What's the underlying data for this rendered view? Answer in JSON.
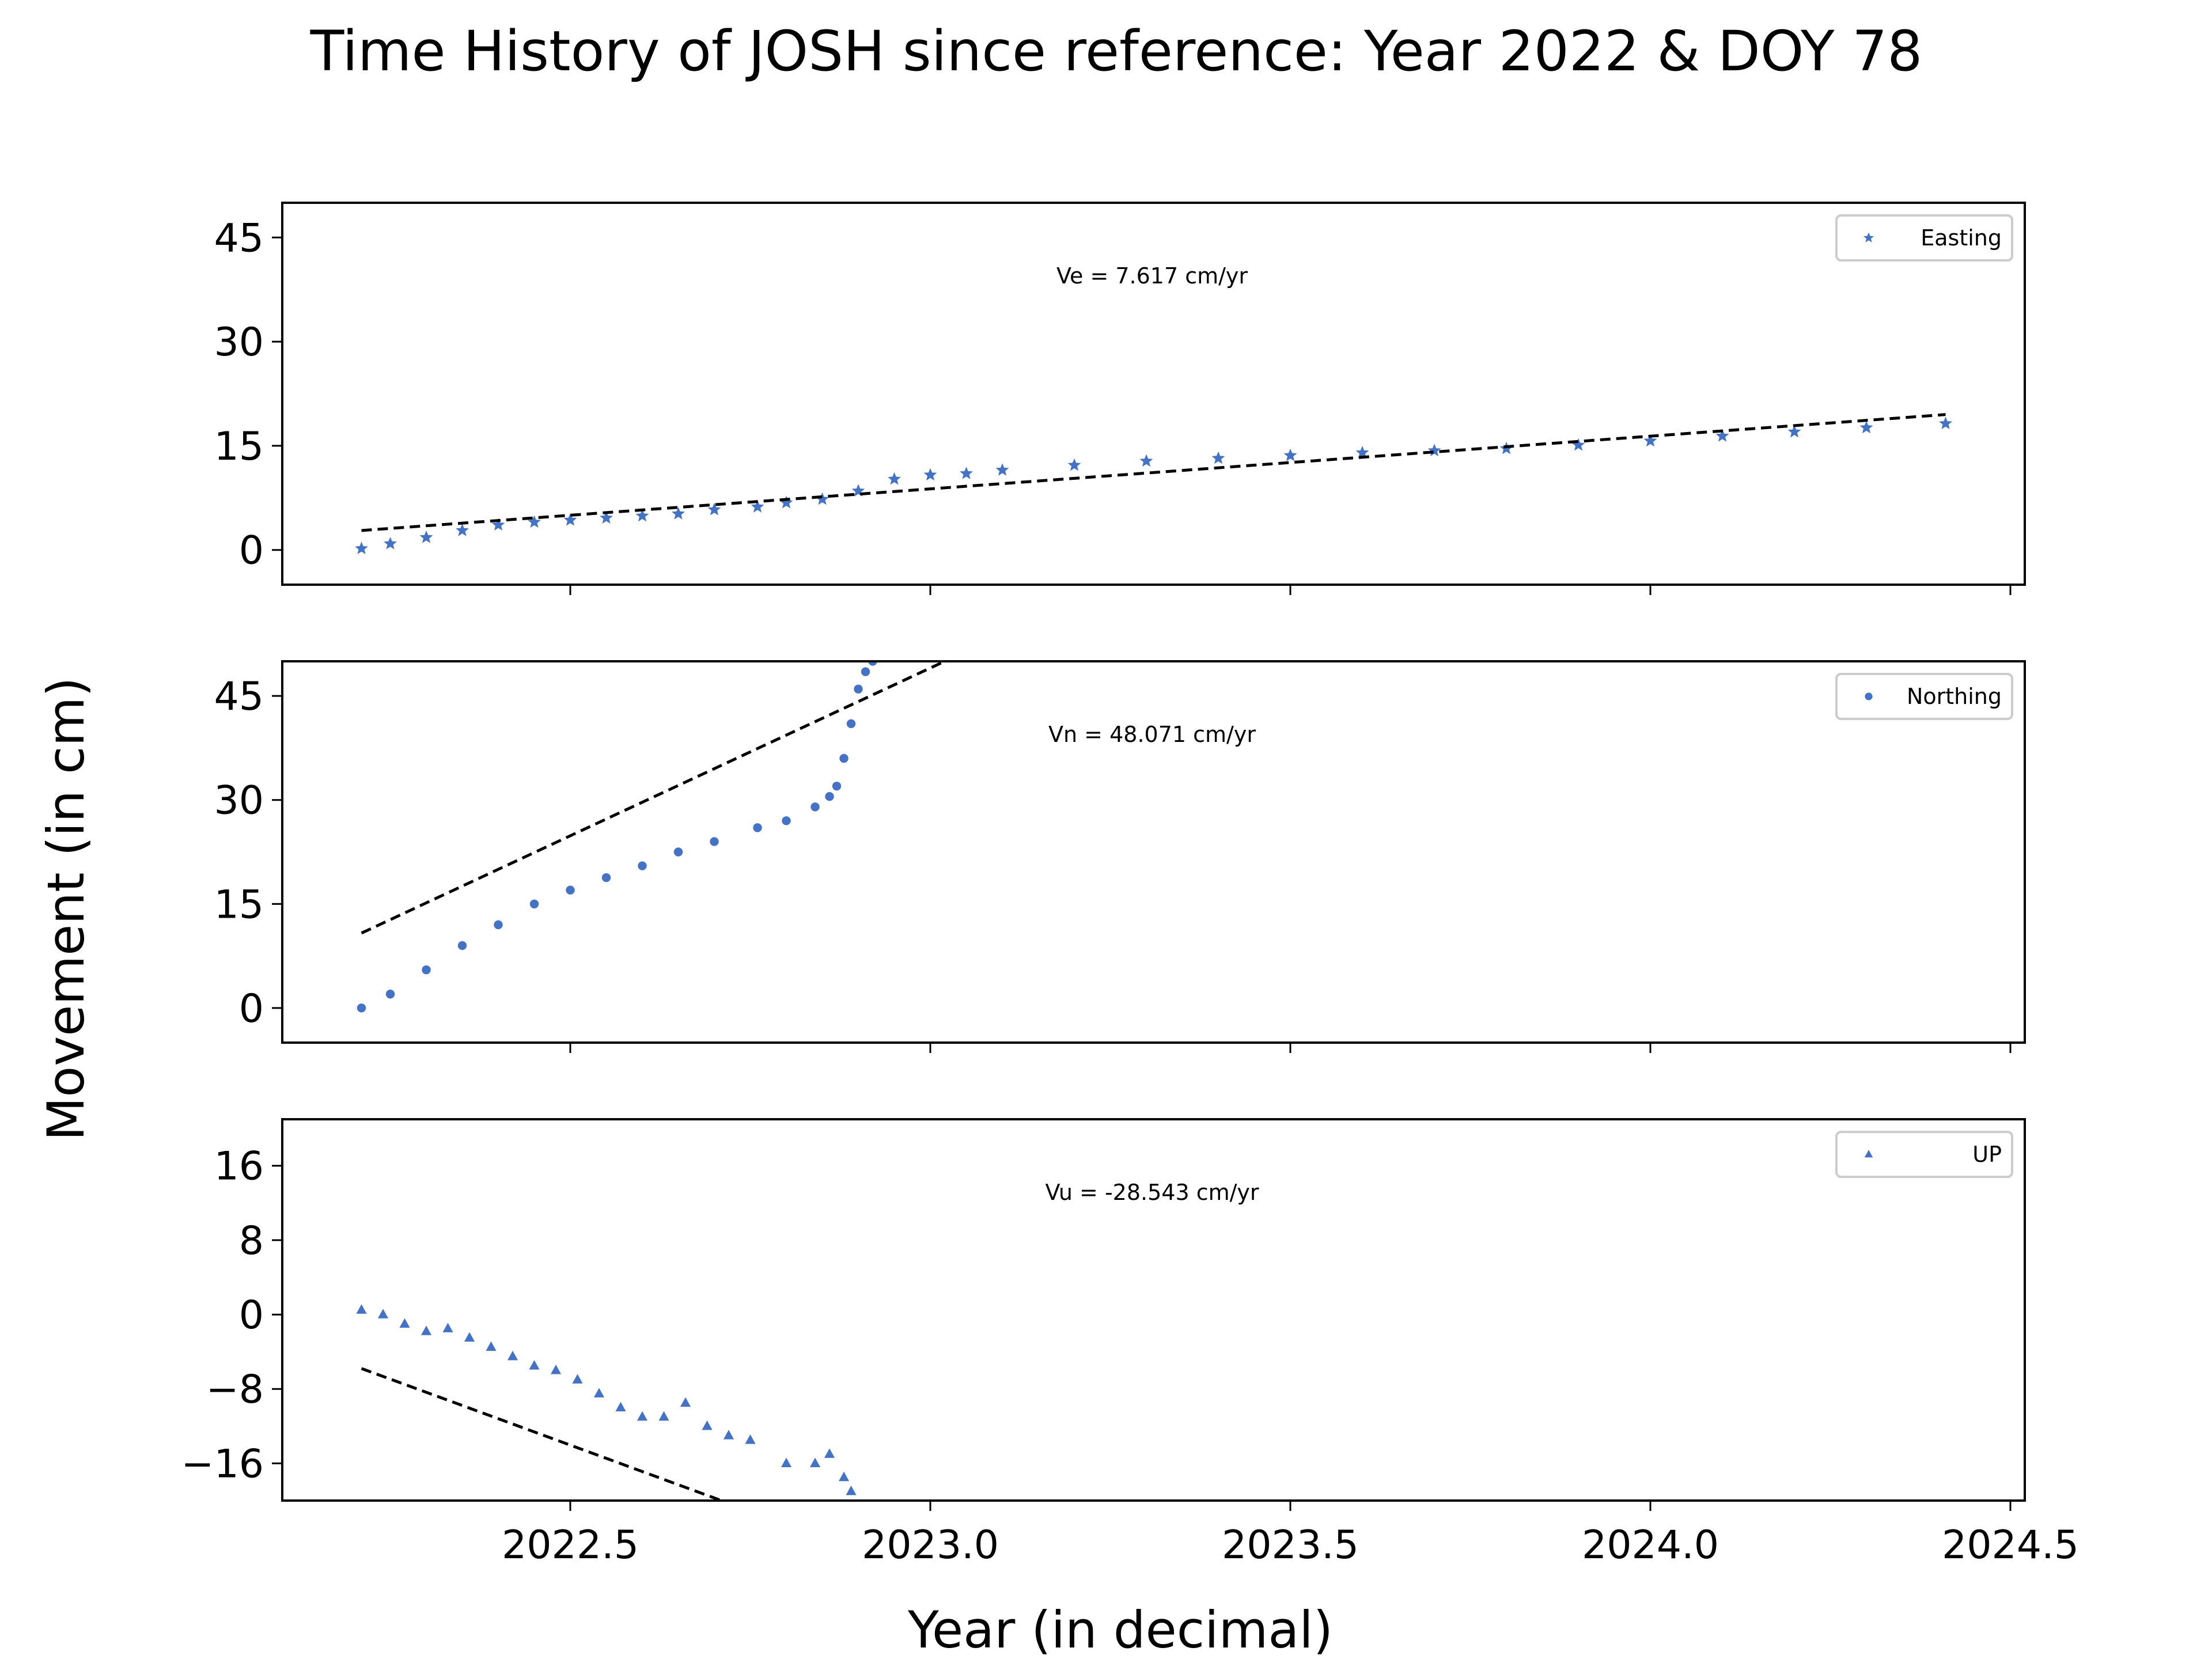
{
  "figure": {
    "title": "Time History of JOSH since reference: Year 2022 & DOY 78",
    "xlabel": "Year (in decimal)",
    "ylabel": "Movement (in cm)"
  },
  "colors": {
    "marker": "#4472c4",
    "fit": "#000000",
    "axes": "#000000",
    "legend_border": "#cccccc"
  },
  "chart_data": [
    {
      "type": "scatter",
      "series_name": "Easting",
      "marker": "star",
      "annotation": "Ve =  7.617 cm/yr",
      "velocity": 7.617,
      "xlim": [
        2022.1,
        2024.52
      ],
      "ylim": [
        -5,
        50
      ],
      "yticks": [
        0,
        15,
        30,
        45
      ],
      "xticks": [
        2022.5,
        2023.0,
        2023.5,
        2024.0,
        2024.5
      ],
      "legend": "upper right",
      "fit_line": {
        "x": [
          2022.21,
          2024.41
        ],
        "y": [
          2.8,
          19.5
        ]
      },
      "x": [
        2022.21,
        2022.25,
        2022.3,
        2022.35,
        2022.4,
        2022.45,
        2022.5,
        2022.55,
        2022.6,
        2022.65,
        2022.7,
        2022.76,
        2022.8,
        2022.85,
        2022.9,
        2022.95,
        2023.0,
        2023.05,
        2023.1,
        2023.2,
        2023.3,
        2023.4,
        2023.5,
        2023.6,
        2023.7,
        2023.8,
        2023.9,
        2024.0,
        2024.1,
        2024.2,
        2024.3,
        2024.41
      ],
      "y": [
        0.2,
        0.9,
        1.8,
        2.8,
        3.6,
        4.0,
        4.3,
        4.6,
        4.9,
        5.2,
        5.8,
        6.2,
        6.8,
        7.3,
        8.5,
        10.2,
        10.8,
        11.0,
        11.5,
        12.2,
        12.8,
        13.2,
        13.6,
        14.0,
        14.3,
        14.6,
        15.1,
        15.7,
        16.4,
        17.0,
        17.6,
        18.2
      ]
    },
    {
      "type": "scatter",
      "series_name": "Northing",
      "marker": "circle",
      "annotation": "Vn =  48.071 cm/yr",
      "velocity": 48.071,
      "xlim": [
        2022.1,
        2024.52
      ],
      "ylim": [
        -5,
        50
      ],
      "yticks": [
        0,
        15,
        30,
        45
      ],
      "xticks": [
        2022.5,
        2023.0,
        2023.5,
        2024.0,
        2024.5
      ],
      "legend": "upper right",
      "fit_line": {
        "x": [
          2022.21,
          2023.02
        ],
        "y": [
          10.8,
          50
        ]
      },
      "x": [
        2022.21,
        2022.25,
        2022.3,
        2022.35,
        2022.4,
        2022.45,
        2022.5,
        2022.55,
        2022.6,
        2022.65,
        2022.7,
        2022.76,
        2022.8,
        2022.84,
        2022.86,
        2022.87,
        2022.88,
        2022.89,
        2022.9,
        2022.91,
        2022.92
      ],
      "y": [
        0.0,
        2.0,
        5.5,
        9.0,
        12.0,
        15.0,
        17.0,
        18.8,
        20.5,
        22.5,
        24.0,
        26.0,
        27.0,
        29.0,
        30.5,
        32.0,
        36.0,
        41.0,
        46.0,
        48.5,
        50.0
      ]
    },
    {
      "type": "scatter",
      "series_name": "UP",
      "marker": "triangle",
      "annotation": "Vu = -28.543 cm/yr",
      "velocity": -28.543,
      "xlim": [
        2022.1,
        2024.52
      ],
      "ylim": [
        -20,
        21
      ],
      "yticks": [
        -16,
        -8,
        0,
        8,
        16
      ],
      "xticks": [
        2022.5,
        2023.0,
        2023.5,
        2024.0,
        2024.5
      ],
      "legend": "upper right",
      "fit_line": {
        "x": [
          2022.21,
          2022.71
        ],
        "y": [
          -5.8,
          -20
        ]
      },
      "x": [
        2022.21,
        2022.24,
        2022.27,
        2022.3,
        2022.33,
        2022.36,
        2022.39,
        2022.42,
        2022.45,
        2022.48,
        2022.51,
        2022.54,
        2022.57,
        2022.6,
        2022.63,
        2022.66,
        2022.69,
        2022.72,
        2022.75,
        2022.8,
        2022.84,
        2022.86,
        2022.88,
        2022.89
      ],
      "y": [
        0.5,
        0.0,
        -1.0,
        -1.8,
        -1.5,
        -2.5,
        -3.5,
        -4.5,
        -5.5,
        -6.0,
        -7.0,
        -8.5,
        -10.0,
        -11.0,
        -11.0,
        -9.5,
        -12.0,
        -13.0,
        -13.5,
        -16.0,
        -16.0,
        -15.0,
        -17.5,
        -19.0
      ]
    }
  ]
}
